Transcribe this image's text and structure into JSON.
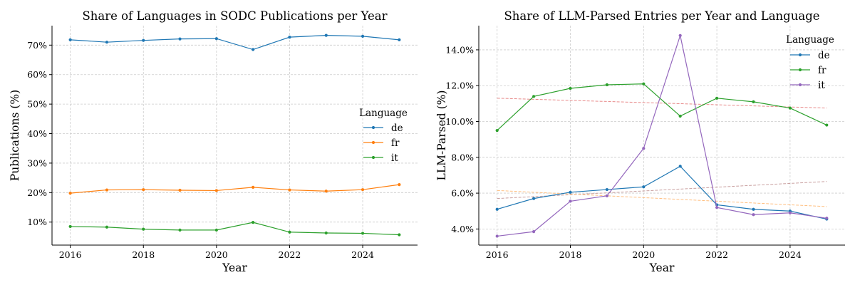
{
  "chart_data": [
    {
      "type": "line",
      "title": "Share of Languages in SODC Publications per Year",
      "xlabel": "Year",
      "ylabel": "Publications (%)",
      "xlim": [
        2015.5,
        2025.5
      ],
      "ylim": [
        2.2,
        76.6
      ],
      "x_ticks": [
        2016,
        2018,
        2020,
        2022,
        2024
      ],
      "y_ticks": [
        10,
        20,
        30,
        40,
        50,
        60,
        70
      ],
      "y_tick_labels": [
        "10%",
        "20%",
        "30%",
        "40%",
        "50%",
        "60%",
        "70%"
      ],
      "grid": true,
      "legend": {
        "title": "Language",
        "placement": "center-right"
      },
      "x": [
        2016,
        2017,
        2018,
        2019,
        2020,
        2021,
        2022,
        2023,
        2024,
        2025
      ],
      "series": [
        {
          "name": "de",
          "color": "#1f77b4",
          "values": [
            71.8,
            71.0,
            71.6,
            72.1,
            72.2,
            68.5,
            72.7,
            73.3,
            73.0,
            71.8
          ]
        },
        {
          "name": "fr",
          "color": "#ff7f0e",
          "values": [
            19.8,
            20.9,
            21.0,
            20.8,
            20.7,
            21.8,
            20.9,
            20.5,
            21.0,
            22.7
          ]
        },
        {
          "name": "it",
          "color": "#2ca02c",
          "values": [
            8.5,
            8.3,
            7.6,
            7.3,
            7.3,
            9.9,
            6.6,
            6.3,
            6.2,
            5.7
          ]
        }
      ]
    },
    {
      "type": "line",
      "title": "Share of LLM-Parsed Entries per Year and Language",
      "xlabel": "Year",
      "ylabel": "LLM-Parsed (%)",
      "xlim": [
        2015.5,
        2025.5
      ],
      "ylim": [
        3.1,
        15.35
      ],
      "x_ticks": [
        2016,
        2018,
        2020,
        2022,
        2024
      ],
      "y_ticks": [
        4,
        6,
        8,
        10,
        12,
        14
      ],
      "y_tick_labels": [
        "4.0%",
        "6.0%",
        "8.0%",
        "10.0%",
        "12.0%",
        "14.0%"
      ],
      "grid": true,
      "legend": {
        "title": "Language",
        "placement": "top-right"
      },
      "x": [
        2016,
        2017,
        2018,
        2019,
        2020,
        2021,
        2022,
        2023,
        2024,
        2025
      ],
      "series": [
        {
          "name": "de",
          "color": "#1f77b4",
          "values": [
            5.1,
            5.7,
            6.05,
            6.2,
            6.35,
            7.5,
            5.35,
            5.1,
            5.0,
            4.55
          ]
        },
        {
          "name": "fr",
          "color": "#2ca02c",
          "values": [
            9.5,
            11.4,
            11.85,
            12.05,
            12.1,
            10.3,
            11.3,
            11.1,
            10.75,
            9.8
          ]
        },
        {
          "name": "it",
          "color": "#9467bd",
          "values": [
            3.6,
            3.85,
            5.55,
            5.85,
            8.5,
            14.8,
            5.2,
            4.8,
            4.9,
            4.6
          ]
        }
      ],
      "trend_lines": [
        {
          "color": "#e88a8a",
          "x": [
            2016,
            2025
          ],
          "values": [
            11.3,
            10.75
          ]
        },
        {
          "color": "#c9a0a0",
          "x": [
            2016,
            2025
          ],
          "values": [
            5.7,
            6.65
          ]
        },
        {
          "color": "#ffbf80",
          "x": [
            2016,
            2025
          ],
          "values": [
            6.15,
            5.25
          ]
        }
      ]
    }
  ]
}
